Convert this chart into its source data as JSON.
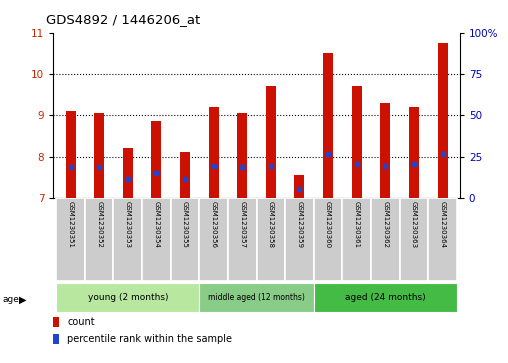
{
  "title": "GDS4892 / 1446206_at",
  "samples": [
    "GSM1230351",
    "GSM1230352",
    "GSM1230353",
    "GSM1230354",
    "GSM1230355",
    "GSM1230356",
    "GSM1230357",
    "GSM1230358",
    "GSM1230359",
    "GSM1230360",
    "GSM1230361",
    "GSM1230362",
    "GSM1230363",
    "GSM1230364"
  ],
  "count_values": [
    9.1,
    9.05,
    8.2,
    8.85,
    8.1,
    9.2,
    9.05,
    9.7,
    7.55,
    10.5,
    9.7,
    9.3,
    9.2,
    10.75
  ],
  "percentile_values": [
    7.75,
    7.75,
    7.45,
    7.6,
    7.45,
    7.78,
    7.75,
    7.78,
    7.22,
    8.05,
    7.82,
    7.78,
    7.82,
    8.05
  ],
  "ymin": 7,
  "ymax": 11,
  "yticks_left": [
    7,
    8,
    9,
    10,
    11
  ],
  "yticks_right": [
    0,
    25,
    50,
    75,
    100
  ],
  "bar_color": "#cc1100",
  "dot_color": "#2244cc",
  "bar_width": 0.35,
  "groups": [
    {
      "label": "young (2 months)",
      "start": 0,
      "end": 5
    },
    {
      "label": "middle aged (12 months)",
      "start": 5,
      "end": 9
    },
    {
      "label": "aged (24 months)",
      "start": 9,
      "end": 14
    }
  ],
  "group_colors": [
    "#b8e8a0",
    "#88cc88",
    "#44bb44"
  ],
  "age_label": "age",
  "legend_count_label": "count",
  "legend_percentile_label": "percentile rank within the sample",
  "cell_color": "#cccccc",
  "cell_edge_color": "#ffffff"
}
